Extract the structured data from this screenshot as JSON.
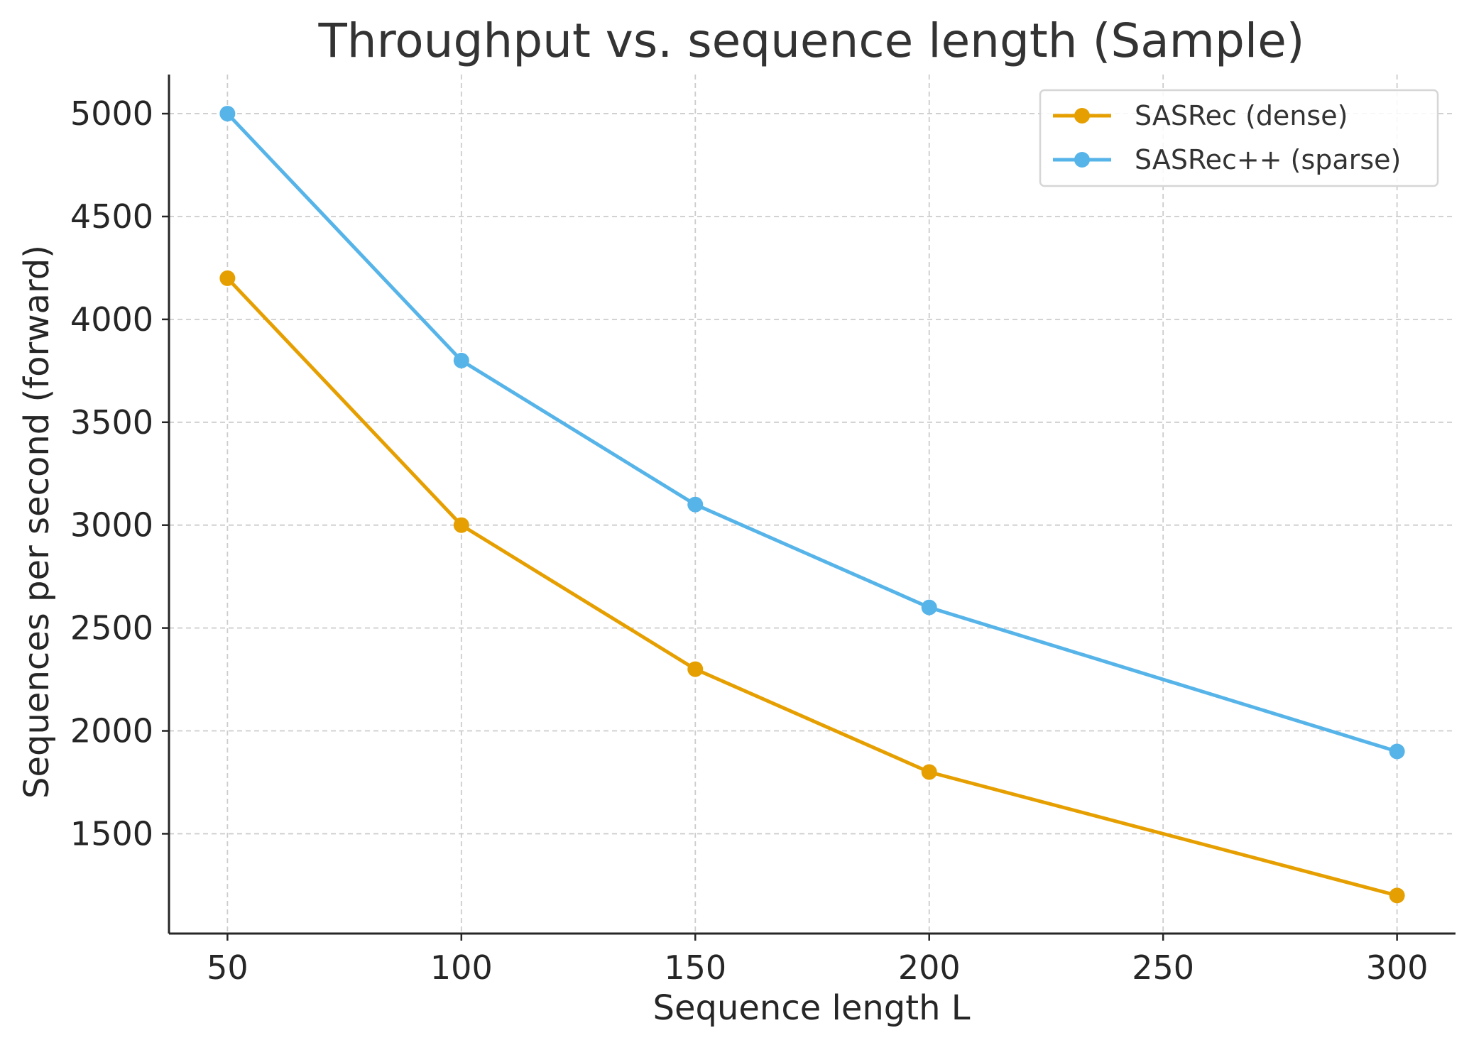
{
  "chart_data": {
    "type": "line",
    "title": "Throughput vs. sequence length (Sample)",
    "xlabel": "Sequence length L",
    "ylabel": "Sequences per second (forward)",
    "xlim": [
      37.5,
      312.5
    ],
    "ylim": [
      1015,
      5190
    ],
    "xticks": [
      50,
      100,
      150,
      200,
      250,
      300
    ],
    "yticks": [
      1500,
      2000,
      2500,
      3000,
      3500,
      4000,
      4500,
      5000
    ],
    "grid": true,
    "legend_position": "top-right",
    "x": [
      50,
      100,
      150,
      200,
      300
    ],
    "series": [
      {
        "name": "SASRec (dense)",
        "color": "#E69F00",
        "values": [
          4200,
          3000,
          2300,
          1800,
          1200
        ]
      },
      {
        "name": "SASRec++ (sparse)",
        "color": "#56B4E9",
        "values": [
          5000,
          3800,
          3100,
          2600,
          1900
        ]
      }
    ]
  }
}
